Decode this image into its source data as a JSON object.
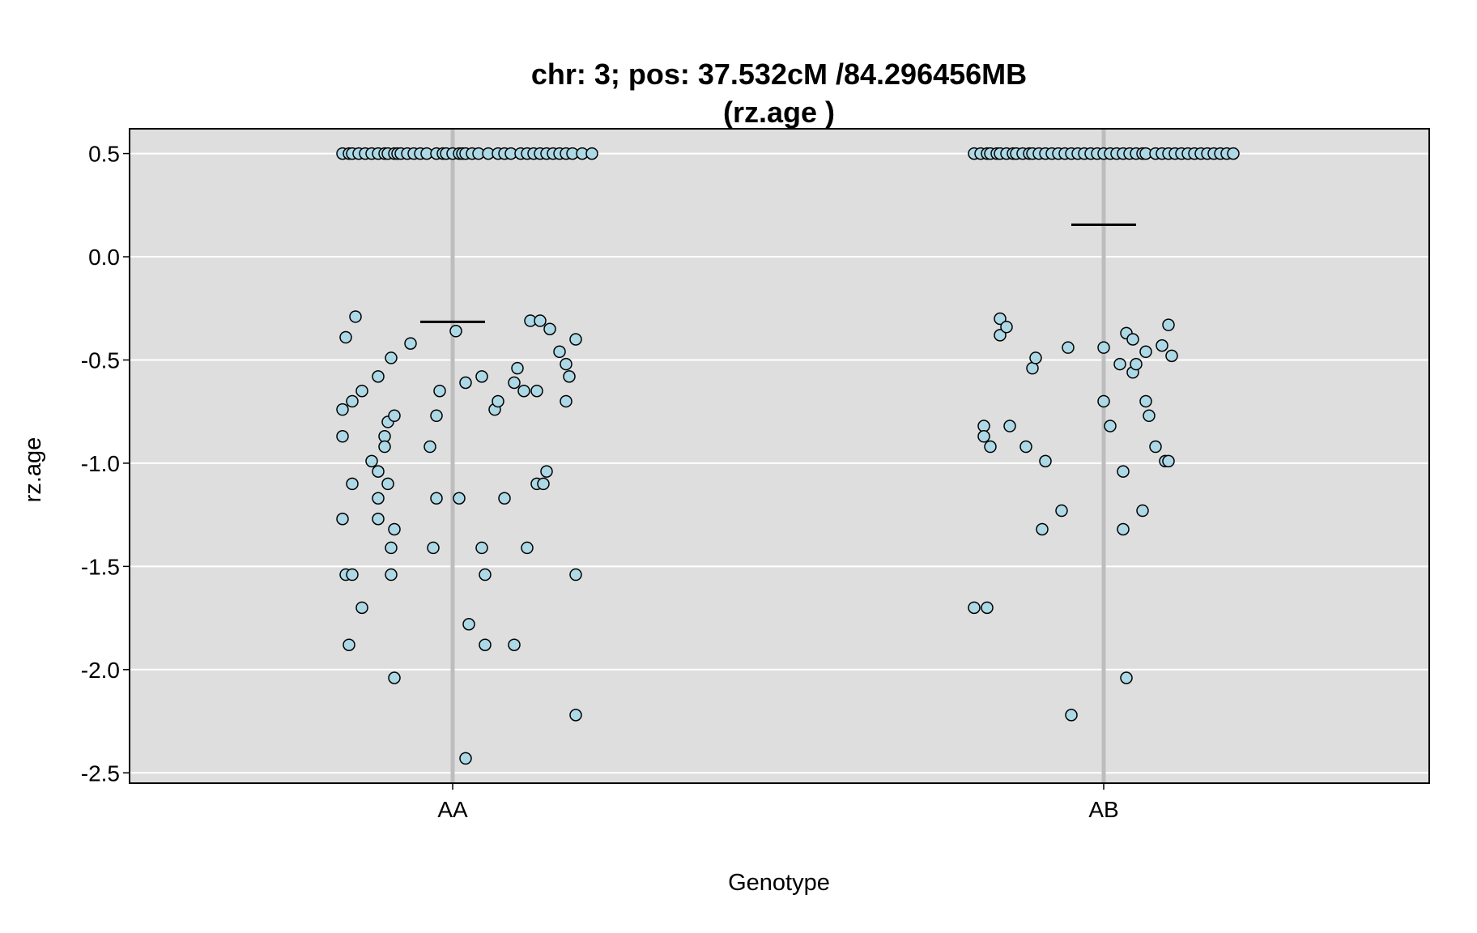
{
  "chart_data": {
    "type": "scatter",
    "title": "chr: 3; pos: 37.532cM /84.296456MB",
    "subtitle": "(rz.age )",
    "xlabel": "Genotype",
    "ylabel": "rz.age",
    "categories": [
      "AA",
      "AB"
    ],
    "ylim": [
      -2.55,
      0.62
    ],
    "yticks": [
      0.5,
      0.0,
      -0.5,
      -1.0,
      -1.5,
      -2.0,
      -2.5
    ],
    "ytick_labels": [
      "0.5",
      "0.0",
      "-0.5",
      "-1.0",
      "-1.5",
      "-2.0",
      "-2.5"
    ],
    "grid": true,
    "colors": {
      "panel": "#dedede",
      "grid": "#ffffff",
      "category_line": "#bdbdbd",
      "point_fill": "#add8e6",
      "point_stroke": "#000000",
      "mean_line": "#000000"
    },
    "series": [
      {
        "category": "AA",
        "mean": -0.315,
        "points": [
          [
            -0.34,
            0.5
          ],
          [
            -0.32,
            0.5
          ],
          [
            -0.31,
            0.5
          ],
          [
            -0.29,
            0.5
          ],
          [
            -0.27,
            0.5
          ],
          [
            -0.25,
            0.5
          ],
          [
            -0.23,
            0.5
          ],
          [
            -0.21,
            0.5
          ],
          [
            -0.2,
            0.5
          ],
          [
            -0.18,
            0.5
          ],
          [
            -0.17,
            0.5
          ],
          [
            -0.16,
            0.5
          ],
          [
            -0.14,
            0.5
          ],
          [
            -0.12,
            0.5
          ],
          [
            -0.1,
            0.5
          ],
          [
            -0.08,
            0.5
          ],
          [
            -0.05,
            0.5
          ],
          [
            -0.03,
            0.5
          ],
          [
            -0.02,
            0.5
          ],
          [
            0.0,
            0.5
          ],
          [
            0.02,
            0.5
          ],
          [
            0.03,
            0.5
          ],
          [
            0.04,
            0.5
          ],
          [
            0.06,
            0.5
          ],
          [
            0.08,
            0.5
          ],
          [
            0.11,
            0.5
          ],
          [
            0.14,
            0.5
          ],
          [
            0.16,
            0.5
          ],
          [
            0.18,
            0.5
          ],
          [
            0.21,
            0.5
          ],
          [
            0.23,
            0.5
          ],
          [
            0.25,
            0.5
          ],
          [
            0.27,
            0.5
          ],
          [
            0.29,
            0.5
          ],
          [
            0.31,
            0.5
          ],
          [
            0.33,
            0.5
          ],
          [
            0.35,
            0.5
          ],
          [
            0.37,
            0.5
          ],
          [
            0.4,
            0.5
          ],
          [
            0.43,
            0.5
          ],
          [
            -0.3,
            -0.29
          ],
          [
            -0.33,
            -0.39
          ],
          [
            -0.34,
            -0.74
          ],
          [
            -0.34,
            -0.87
          ],
          [
            -0.34,
            -1.27
          ],
          [
            -0.33,
            -1.54
          ],
          [
            -0.32,
            -1.88
          ],
          [
            -0.31,
            -0.7
          ],
          [
            -0.31,
            -1.1
          ],
          [
            -0.31,
            -1.54
          ],
          [
            -0.28,
            -0.65
          ],
          [
            -0.28,
            -1.7
          ],
          [
            -0.25,
            -0.99
          ],
          [
            -0.23,
            -0.58
          ],
          [
            -0.23,
            -1.04
          ],
          [
            -0.23,
            -1.17
          ],
          [
            -0.23,
            -1.27
          ],
          [
            -0.21,
            -0.87
          ],
          [
            -0.21,
            -0.92
          ],
          [
            -0.2,
            -0.8
          ],
          [
            -0.2,
            -1.1
          ],
          [
            -0.19,
            -0.49
          ],
          [
            -0.19,
            -1.41
          ],
          [
            -0.19,
            -1.54
          ],
          [
            -0.18,
            -0.77
          ],
          [
            -0.18,
            -1.32
          ],
          [
            -0.18,
            -2.04
          ],
          [
            -0.13,
            -0.42
          ],
          [
            -0.07,
            -0.92
          ],
          [
            -0.06,
            -1.41
          ],
          [
            -0.05,
            -0.77
          ],
          [
            -0.05,
            -1.17
          ],
          [
            -0.04,
            -0.65
          ],
          [
            0.01,
            -0.36
          ],
          [
            0.02,
            -1.17
          ],
          [
            0.04,
            -0.61
          ],
          [
            0.05,
            -1.78
          ],
          [
            0.04,
            -2.43
          ],
          [
            0.09,
            -0.58
          ],
          [
            0.09,
            -1.41
          ],
          [
            0.1,
            -1.54
          ],
          [
            0.1,
            -1.88
          ],
          [
            0.13,
            -0.74
          ],
          [
            0.14,
            -0.7
          ],
          [
            0.16,
            -1.17
          ],
          [
            0.19,
            -0.61
          ],
          [
            0.2,
            -0.54
          ],
          [
            0.19,
            -1.88
          ],
          [
            0.22,
            -0.65
          ],
          [
            0.23,
            -1.41
          ],
          [
            0.24,
            -0.31
          ],
          [
            0.26,
            -0.65
          ],
          [
            0.26,
            -1.1
          ],
          [
            0.27,
            -0.31
          ],
          [
            0.28,
            -1.1
          ],
          [
            0.29,
            -1.04
          ],
          [
            0.3,
            -0.35
          ],
          [
            0.33,
            -0.46
          ],
          [
            0.35,
            -0.7
          ],
          [
            0.35,
            -0.52
          ],
          [
            0.36,
            -0.58
          ],
          [
            0.38,
            -0.4
          ],
          [
            0.38,
            -1.54
          ],
          [
            0.38,
            -2.22
          ]
        ]
      },
      {
        "category": "AB",
        "mean": 0.155,
        "points": [
          [
            -0.4,
            0.5
          ],
          [
            -0.38,
            0.5
          ],
          [
            -0.36,
            0.5
          ],
          [
            -0.35,
            0.5
          ],
          [
            -0.33,
            0.5
          ],
          [
            -0.32,
            0.5
          ],
          [
            -0.3,
            0.5
          ],
          [
            -0.28,
            0.5
          ],
          [
            -0.27,
            0.5
          ],
          [
            -0.25,
            0.5
          ],
          [
            -0.23,
            0.5
          ],
          [
            -0.22,
            0.5
          ],
          [
            -0.2,
            0.5
          ],
          [
            -0.18,
            0.5
          ],
          [
            -0.16,
            0.5
          ],
          [
            -0.14,
            0.5
          ],
          [
            -0.12,
            0.5
          ],
          [
            -0.1,
            0.5
          ],
          [
            -0.08,
            0.5
          ],
          [
            -0.06,
            0.5
          ],
          [
            -0.04,
            0.5
          ],
          [
            -0.02,
            0.5
          ],
          [
            0.0,
            0.5
          ],
          [
            0.02,
            0.5
          ],
          [
            0.04,
            0.5
          ],
          [
            0.06,
            0.5
          ],
          [
            0.08,
            0.5
          ],
          [
            0.1,
            0.5
          ],
          [
            0.12,
            0.5
          ],
          [
            0.13,
            0.5
          ],
          [
            0.16,
            0.5
          ],
          [
            0.18,
            0.5
          ],
          [
            0.2,
            0.5
          ],
          [
            0.22,
            0.5
          ],
          [
            0.24,
            0.5
          ],
          [
            0.26,
            0.5
          ],
          [
            0.28,
            0.5
          ],
          [
            0.3,
            0.5
          ],
          [
            0.32,
            0.5
          ],
          [
            0.34,
            0.5
          ],
          [
            0.36,
            0.5
          ],
          [
            0.38,
            0.5
          ],
          [
            0.4,
            0.5
          ],
          [
            -0.4,
            -1.7
          ],
          [
            -0.37,
            -0.82
          ],
          [
            -0.37,
            -0.87
          ],
          [
            -0.36,
            -1.7
          ],
          [
            -0.35,
            -0.92
          ],
          [
            -0.32,
            -0.3
          ],
          [
            -0.32,
            -0.38
          ],
          [
            -0.3,
            -0.34
          ],
          [
            -0.29,
            -0.82
          ],
          [
            -0.24,
            -0.92
          ],
          [
            -0.22,
            -0.54
          ],
          [
            -0.21,
            -0.49
          ],
          [
            -0.18,
            -0.99
          ],
          [
            -0.19,
            -1.32
          ],
          [
            -0.13,
            -1.23
          ],
          [
            -0.11,
            -0.44
          ],
          [
            -0.1,
            -2.22
          ],
          [
            0.0,
            -0.44
          ],
          [
            0.0,
            -0.7
          ],
          [
            0.02,
            -0.82
          ],
          [
            0.05,
            -0.52
          ],
          [
            0.06,
            -1.04
          ],
          [
            0.06,
            -1.32
          ],
          [
            0.07,
            -0.37
          ],
          [
            0.07,
            -2.04
          ],
          [
            0.09,
            -0.56
          ],
          [
            0.09,
            -0.4
          ],
          [
            0.1,
            -0.52
          ],
          [
            0.12,
            -1.23
          ],
          [
            0.13,
            -0.46
          ],
          [
            0.13,
            -0.7
          ],
          [
            0.14,
            -0.77
          ],
          [
            0.16,
            -0.92
          ],
          [
            0.18,
            -0.43
          ],
          [
            0.19,
            -0.99
          ],
          [
            0.2,
            -0.33
          ],
          [
            0.21,
            -0.48
          ],
          [
            0.2,
            -0.99
          ]
        ]
      }
    ]
  }
}
